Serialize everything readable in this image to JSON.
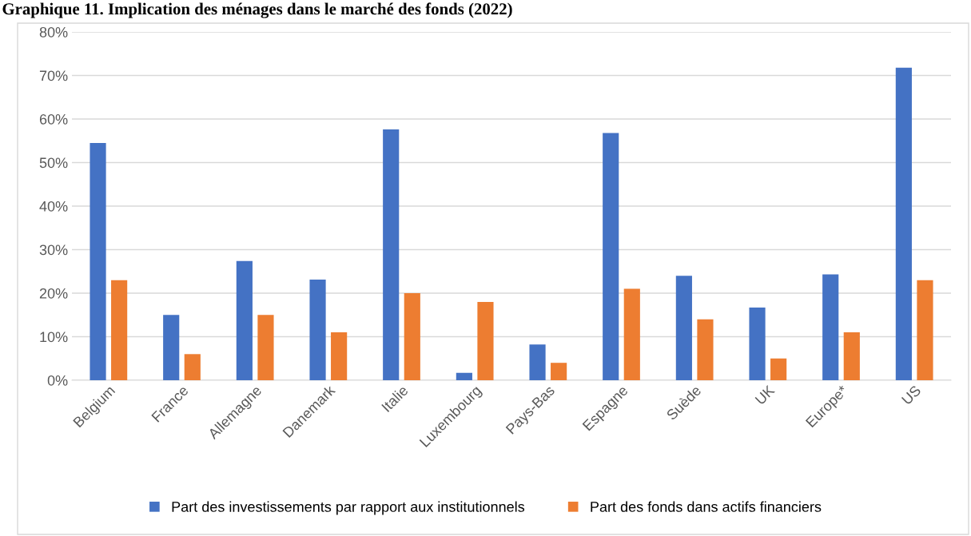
{
  "chart_data": {
    "type": "bar",
    "title": "Graphique 11. Implication des ménages dans le marché des fonds (2022)",
    "categories": [
      "Belgium",
      "France",
      "Allemagne",
      "Danemark",
      "Italie",
      "Luxembourg",
      "Pays-Bas",
      "Espagne",
      "Suède",
      "UK",
      "Europe*",
      "US"
    ],
    "series": [
      {
        "name": "Part des investissements par rapport aux institutionnels",
        "color": "#4472c4",
        "values": [
          54.5,
          15,
          27.4,
          23.1,
          57.6,
          1.7,
          8.2,
          56.8,
          24,
          16.7,
          24.3,
          71.8
        ]
      },
      {
        "name": "Part des fonds dans actifs financiers",
        "color": "#ed7d31",
        "values": [
          23,
          6,
          15,
          11,
          20,
          18,
          4,
          21,
          14,
          5,
          11,
          23
        ]
      }
    ],
    "ylim": [
      0,
      80
    ],
    "yticks": [
      {
        "value": 0,
        "label": "0%"
      },
      {
        "value": 10,
        "label": "10%"
      },
      {
        "value": 20,
        "label": "20%"
      },
      {
        "value": 30,
        "label": "30%"
      },
      {
        "value": 40,
        "label": "40%"
      },
      {
        "value": 50,
        "label": "50%"
      },
      {
        "value": 60,
        "label": "60%"
      },
      {
        "value": 70,
        "label": "70%"
      },
      {
        "value": 80,
        "label": "80%"
      }
    ],
    "grid": "y",
    "legend": "bottom"
  }
}
